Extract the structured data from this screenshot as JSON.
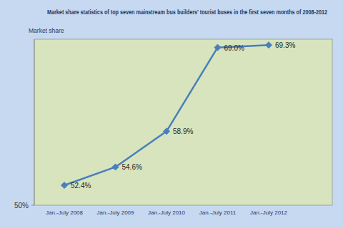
{
  "chart_data": {
    "type": "line",
    "title": "Market share statistics of top seven mainstream bus builders' tourist buses in the first seven months of 2008-2012",
    "y_label": "Market share",
    "categories": [
      "Jan.-July 2008",
      "Jan.-July 2009",
      "Jan.-July 2010",
      "Jan.-July 2011",
      "Jan.-July 2012"
    ],
    "values": [
      52.4,
      54.6,
      58.9,
      69.0,
      69.3
    ],
    "value_labels": [
      "52.4%",
      "54.6%",
      "58.9%",
      "69.0%",
      "69.3%"
    ],
    "color": "#4a7ebb",
    "marker": "diamond",
    "data_labels": true,
    "grid": false,
    "ylim": [
      50,
      70
    ],
    "yticks": [
      {
        "value": 50,
        "label": "50%"
      }
    ]
  }
}
